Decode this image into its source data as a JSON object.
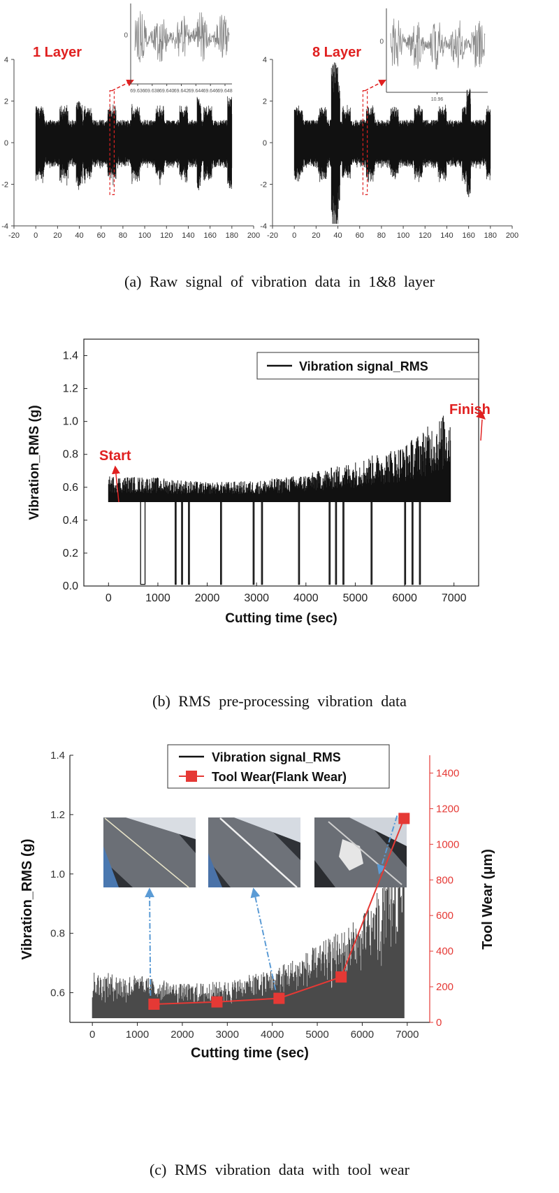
{
  "captions": {
    "a": "(a)  Raw signal of vibration data in 1&8 layer",
    "b": "(b)  RMS pre-processing vibration data",
    "c": "(c)  RMS vibration data with tool wear"
  },
  "panel_a": {
    "left": {
      "label": "1 Layer",
      "inset_ticks": [
        "69.636",
        "69.638",
        "69.640",
        "69.642",
        "69.644",
        "69.646",
        "69.648"
      ],
      "inset_y_tick": "0"
    },
    "right": {
      "label": "8 Layer",
      "inset_ticks": [
        "10.96"
      ],
      "inset_y_tick": "0"
    }
  },
  "panel_b": {
    "annotations": {
      "start": "Start",
      "finish": "Finish"
    }
  },
  "colors": {
    "signal": "#111111",
    "signal_c": "#4a4a4a",
    "tool_wear": "#e53935",
    "annotation": "#e02020",
    "arrow_blue": "#5b9bd5"
  },
  "chart_data": [
    {
      "type": "line",
      "title": "1 Layer",
      "xlabel": "",
      "ylabel": "",
      "xlim": [
        -20,
        200
      ],
      "ylim": [
        -4,
        4
      ],
      "xticks": [
        -20,
        0,
        20,
        40,
        60,
        80,
        100,
        120,
        140,
        160,
        180,
        200
      ],
      "yticks": [
        -4,
        -2,
        0,
        2,
        4
      ],
      "signal": {
        "x_range": [
          0,
          180
        ],
        "typical_amplitude": 1.0,
        "peak_amplitude": 2.4
      },
      "highlight_x": [
        68,
        72
      ]
    },
    {
      "type": "line",
      "title": "8 Layer",
      "xlabel": "",
      "ylabel": "",
      "xlim": [
        -20,
        200
      ],
      "ylim": [
        -4,
        4
      ],
      "xticks": [
        -20,
        0,
        20,
        40,
        60,
        80,
        100,
        120,
        140,
        160,
        180,
        200
      ],
      "yticks": [
        -4,
        -2,
        0,
        2,
        4
      ],
      "signal": {
        "x_range": [
          0,
          180
        ],
        "typical_amplitude": 1.0,
        "peak_amplitude": 3.9
      },
      "highlight_x": [
        63,
        67
      ]
    },
    {
      "type": "line",
      "xlabel": "Cutting time (sec)",
      "ylabel": "Vibration_RMS (g)",
      "xlim": [
        -500,
        7500
      ],
      "ylim": [
        0,
        1.5
      ],
      "xticks": [
        0,
        1000,
        2000,
        3000,
        4000,
        5000,
        6000,
        7000
      ],
      "yticks": [
        0.0,
        0.2,
        0.4,
        0.6,
        0.8,
        1.0,
        1.2,
        1.4
      ],
      "legend": "top-right",
      "series": [
        {
          "name": "Vibration signal_RMS",
          "x_range": [
            0,
            6930
          ],
          "baseline": 0.51,
          "envelope_top": [
            [
              0,
              0.67
            ],
            [
              1000,
              0.66
            ],
            [
              2000,
              0.63
            ],
            [
              3000,
              0.64
            ],
            [
              4000,
              0.68
            ],
            [
              5000,
              0.76
            ],
            [
              6000,
              0.86
            ],
            [
              6500,
              0.98
            ],
            [
              6900,
              1.07
            ]
          ],
          "drop_to_zero_x": [
            650,
            1350,
            1480,
            1620,
            2270,
            2930,
            3100,
            3850,
            4470,
            4600,
            4750,
            5320,
            6000,
            6150,
            6300
          ]
        }
      ]
    },
    {
      "type": "line",
      "xlabel": "Cutting time (sec)",
      "ylabel": "Vibration_RMS (g)",
      "y2label": "Tool Wear (μm)",
      "xlim": [
        -500,
        7500
      ],
      "ylim": [
        0.5,
        1.4
      ],
      "y2lim": [
        0,
        1500
      ],
      "xticks": [
        0,
        1000,
        2000,
        3000,
        4000,
        5000,
        6000,
        7000
      ],
      "yticks": [
        0.6,
        0.8,
        1.0,
        1.2,
        1.4
      ],
      "y2ticks": [
        0,
        200,
        400,
        600,
        800,
        1000,
        1200,
        1400
      ],
      "legend": "top-center",
      "series": [
        {
          "name": "Vibration signal_RMS",
          "x_range": [
            0,
            6930
          ],
          "baseline": 0.51,
          "envelope_top": [
            [
              0,
              0.67
            ],
            [
              1000,
              0.66
            ],
            [
              2000,
              0.63
            ],
            [
              3000,
              0.64
            ],
            [
              4000,
              0.68
            ],
            [
              5000,
              0.76
            ],
            [
              6000,
              0.86
            ],
            [
              6500,
              0.98
            ],
            [
              6900,
              1.07
            ]
          ]
        },
        {
          "name": "Tool Wear(Flank Wear)",
          "axis": "right",
          "x": [
            1370,
            2770,
            4150,
            5530,
            6930
          ],
          "y": [
            102,
            115,
            135,
            255,
            1145
          ]
        }
      ]
    }
  ]
}
